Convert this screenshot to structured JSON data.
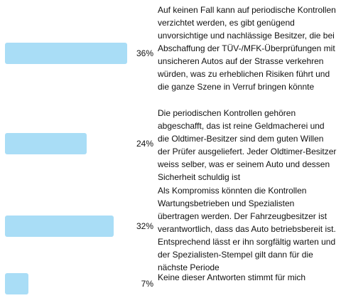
{
  "chart_data": {
    "type": "bar",
    "orientation": "horizontal",
    "max_value": 100,
    "bar_color": "#a9ddf6",
    "options": [
      {
        "percent_label": "36%",
        "value": 36,
        "answer": "Auf keinen Fall kann auf periodische Kontrollen verzichtet werden, es gibt genügend unvorsichtige und nachlässige Besitzer, die bei Abschaffung der TÜV-/MFK-Überprüfungen mit unsicheren Autos auf der Strasse verkehren würden, was zu erheblichen Risiken führt und die ganze Szene in Verruf bringen könnte"
      },
      {
        "percent_label": "24%",
        "value": 24,
        "answer": "Die periodischen Kontrollen gehören abgeschafft, das ist reine Geldmacherei und die Oldtimer-Besitzer sind dem guten Willen der Prüfer ausgeliefert. Jeder Oldtimer-Besitzer weiss selber, was er seinem Auto und dessen Sicherheit schuldig ist"
      },
      {
        "percent_label": "32%",
        "value": 32,
        "answer": "Als Kompromiss könnten die Kontrollen Wartungsbetrieben und Spezialisten übertragen werden. Der Fahrzeugbesitzer ist verantwortlich, dass das Auto betriebsbereit ist. Entsprechend lässt er ihn sorgfältig warten und der Spezialisten-Stempel gilt dann für die nächste Periode"
      },
      {
        "percent_label": "7%",
        "value": 7,
        "answer": "Keine dieser Antworten stimmt für mich"
      }
    ]
  }
}
